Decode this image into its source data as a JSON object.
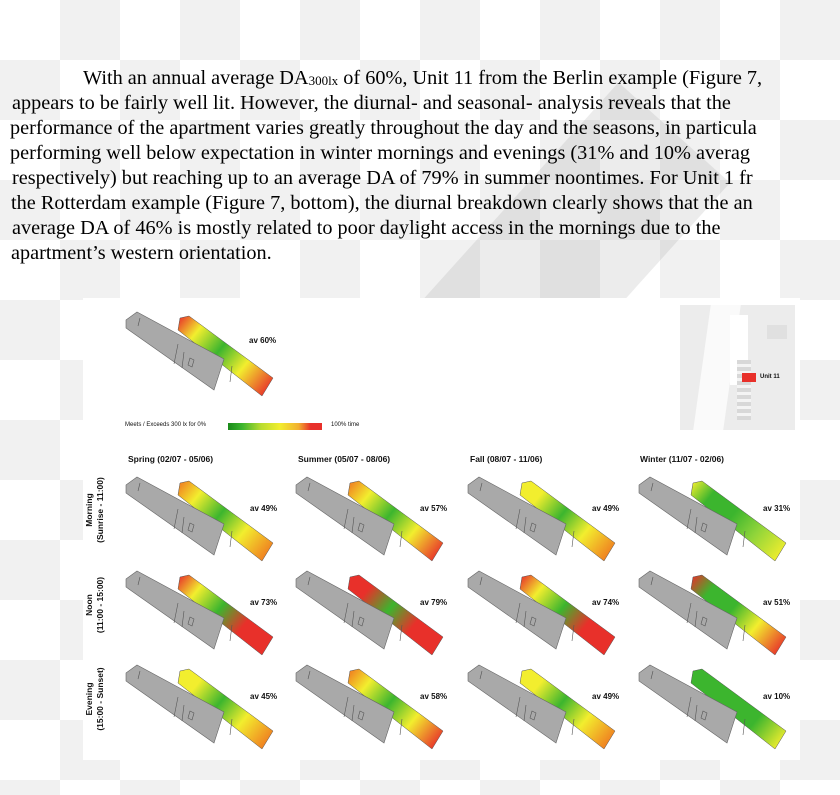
{
  "paragraph": {
    "line1_pre": "With an annual average DA",
    "line1_sub": "300lx",
    "line1_post": " of 60%, Unit 11 from the Berlin example (Figure 7,",
    "lines": [
      "appears to be fairly well lit. However, the diurnal- and seasonal- analysis reveals that the",
      "performance of the apartment varies greatly throughout the day and the seasons, in particula",
      "performing well below expectation in winter mornings and evenings (31% and 10% averag",
      "respectively) but reaching up to an average DA of 79% in summer noontimes. For Unit 1 fr",
      "the Rotterdam example (Figure 7, bottom), the diurnal breakdown clearly shows that the an",
      "average DA of 46% is mostly related to poor daylight access in the mornings due to the",
      "apartment’s western orientation."
    ]
  },
  "figure": {
    "annual": {
      "label": "av 60%",
      "colors": [
        "#e8302a",
        "#f2ee2e",
        "#3cb52e",
        "#f2ee2e",
        "#e8302a"
      ]
    },
    "unit_label": "Unit 11",
    "unit_highlight_color": "#e8302a",
    "legend": {
      "left": "Meets / Exceeds 300 lx for 0%",
      "right": "100% time"
    },
    "seasons": [
      "Spring (02/07 - 05/06)",
      "Summer (05/07 - 08/06)",
      "Fall (08/07 - 11/06)",
      "Winter (11/07 - 02/06)"
    ],
    "periods": [
      {
        "name": "Morning",
        "range": "(Sunrise - 11:00)"
      },
      {
        "name": "Noon",
        "range": "(11:00 - 15:00)"
      },
      {
        "name": "Evening",
        "range": "(15:00 - Sunset)"
      }
    ],
    "cells": [
      [
        {
          "label": "av 49%",
          "colors": [
            "#f07a20",
            "#f2ee2e",
            "#3cb52e",
            "#f2ee2e",
            "#f07a20"
          ]
        },
        {
          "label": "av 57%",
          "colors": [
            "#f07a20",
            "#f2ee2e",
            "#3cb52e",
            "#f2ee2e",
            "#e8302a"
          ]
        },
        {
          "label": "av 49%",
          "colors": [
            "#f2ee2e",
            "#f2ee2e",
            "#3cb52e",
            "#f2ee2e",
            "#f07a20"
          ]
        },
        {
          "label": "av 31%",
          "colors": [
            "#f2ee2e",
            "#3cb52e",
            "#3cb52e",
            "#8fd43a",
            "#f2ee2e"
          ]
        }
      ],
      [
        {
          "label": "av 73%",
          "colors": [
            "#e8302a",
            "#f2ee2e",
            "#3cb52e",
            "#e8302a",
            "#e8302a"
          ]
        },
        {
          "label": "av 79%",
          "colors": [
            "#e8302a",
            "#e8302a",
            "#3cb52e",
            "#e8302a",
            "#e8302a"
          ]
        },
        {
          "label": "av 74%",
          "colors": [
            "#e8302a",
            "#f2ee2e",
            "#3cb52e",
            "#e8302a",
            "#e8302a"
          ]
        },
        {
          "label": "av 51%",
          "colors": [
            "#e8302a",
            "#3cb52e",
            "#3cb52e",
            "#f2ee2e",
            "#e8302a"
          ]
        }
      ],
      [
        {
          "label": "av 45%",
          "colors": [
            "#f2ee2e",
            "#f2ee2e",
            "#3cb52e",
            "#f2ee2e",
            "#f07a20"
          ]
        },
        {
          "label": "av 58%",
          "colors": [
            "#f07a20",
            "#f2ee2e",
            "#3cb52e",
            "#f2ee2e",
            "#e8302a"
          ]
        },
        {
          "label": "av 49%",
          "colors": [
            "#f2ee2e",
            "#f2ee2e",
            "#3cb52e",
            "#f2ee2e",
            "#f07a20"
          ]
        },
        {
          "label": "av 10%",
          "colors": [
            "#3cb52e",
            "#3cb52e",
            "#3cb52e",
            "#3cb52e",
            "#f2ee2e"
          ]
        }
      ]
    ]
  }
}
